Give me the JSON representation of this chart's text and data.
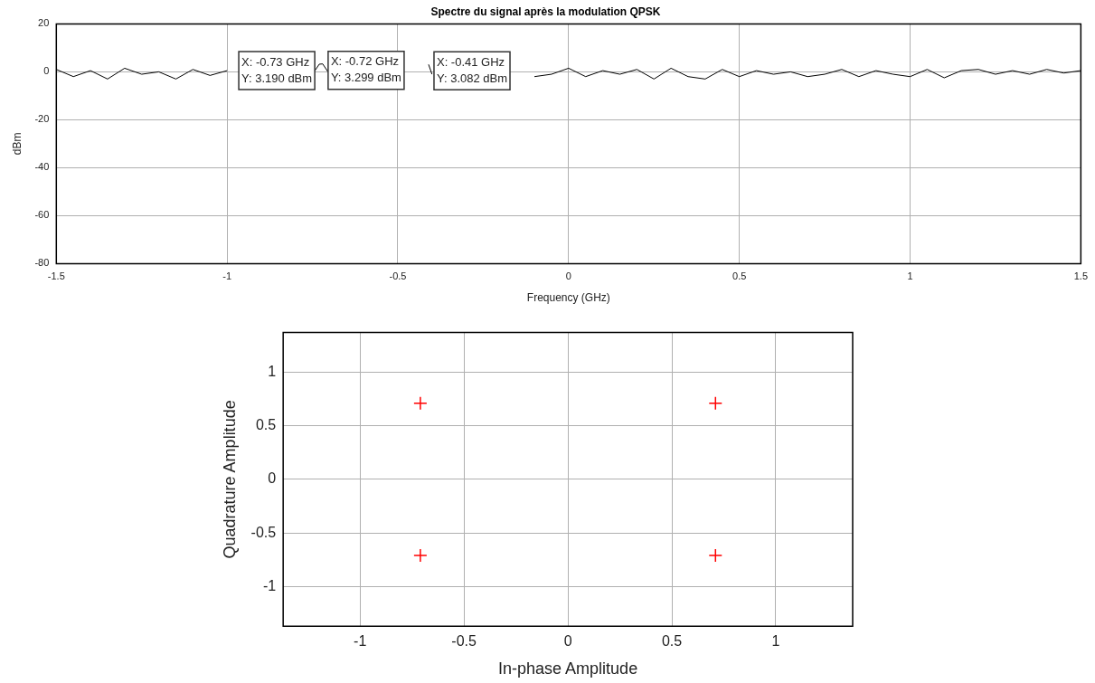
{
  "chart_data": [
    {
      "type": "line",
      "title": "Spectre du signal après la modulation QPSK",
      "xlabel": "Frequency (GHz)",
      "ylabel": "dBm",
      "x": [
        -1.5,
        -1.45,
        -1.4,
        -1.35,
        -1.3,
        -1.25,
        -1.2,
        -1.15,
        -1.1,
        -1.05,
        -1,
        -0.95,
        -0.9,
        -0.85,
        -0.8,
        -0.75,
        -0.73,
        -0.72,
        -0.7,
        -0.65,
        -0.6,
        -0.55,
        -0.5,
        -0.45,
        -0.41,
        -0.4,
        -0.35,
        -0.3,
        -0.25,
        -0.2,
        -0.15,
        -0.1,
        -0.05,
        0,
        0.05,
        0.1,
        0.15,
        0.2,
        0.25,
        0.3,
        0.35,
        0.4,
        0.45,
        0.5,
        0.55,
        0.6,
        0.65,
        0.7,
        0.75,
        0.8,
        0.85,
        0.9,
        0.95,
        1,
        1.05,
        1.1,
        1.15,
        1.2,
        1.25,
        1.3,
        1.35,
        1.4,
        1.45,
        1.5
      ],
      "series": [
        {
          "color": "#000000",
          "values": [
            1,
            -2,
            0.5,
            -3,
            1.5,
            -1,
            0,
            -3,
            1,
            -1.5,
            0.5,
            null,
            null,
            null,
            null,
            -1,
            3.19,
            3.299,
            -1,
            null,
            null,
            null,
            null,
            null,
            3.082,
            -1,
            null,
            null,
            null,
            null,
            null,
            -2,
            -1,
            1.5,
            -2,
            0.5,
            -1,
            1,
            -3,
            1.5,
            -2,
            -3,
            1,
            -2,
            0.5,
            -1,
            0,
            -2,
            -1,
            1,
            -2,
            0.5,
            -1,
            -2,
            1,
            -2.5,
            0.5,
            1,
            -1,
            0.5,
            -1,
            1,
            -0.5,
            0.5
          ]
        }
      ],
      "xlim": [
        -1.5,
        1.5
      ],
      "xticks": [
        -1.5,
        -1,
        -0.5,
        0,
        0.5,
        1,
        1.5
      ],
      "ylim": [
        -80,
        20
      ],
      "yticks": [
        -80,
        -60,
        -40,
        -20,
        0,
        20
      ],
      "grid": true,
      "annotations": [
        {
          "text": "X: -0.73 GHz\nY: 3.190 dBm",
          "x": -0.73,
          "y": 3.19
        },
        {
          "text": "X: -0.72 GHz\nY: 3.299 dBm",
          "x": -0.72,
          "y": 3.299
        },
        {
          "text": "X: -0.41 GHz\nY: 3.082 dBm",
          "x": -0.41,
          "y": 3.082
        }
      ]
    },
    {
      "type": "scatter",
      "xlabel": "In-phase Amplitude",
      "ylabel": "Quadrature Amplitude",
      "x": [
        -0.71,
        0.71,
        -0.71,
        0.71
      ],
      "series": [
        {
          "color": "#ff0000",
          "values": [
            0.71,
            0.71,
            -0.71,
            -0.71
          ]
        }
      ],
      "marker": "cross",
      "xlim": [
        -1.37,
        1.37
      ],
      "xticks": [
        -1,
        -0.5,
        0,
        0.5,
        1
      ],
      "ylim": [
        -1.37,
        1.37
      ],
      "yticks": [
        -1,
        -0.5,
        0,
        0.5,
        1
      ],
      "grid": true
    }
  ]
}
